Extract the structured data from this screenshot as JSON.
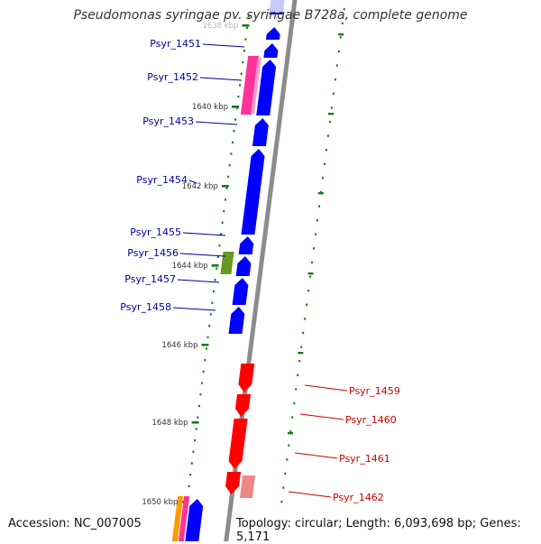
{
  "title": "Pseudomonas syringae pv. syringae B728a, complete genome",
  "accession": "Accession: NC_007005",
  "summary": "Topology: circular; Length: 6,093,698 bp; Genes: 5,171",
  "colors": {
    "backbone": "#8c8c8c",
    "forward_cds": "#0000ff",
    "reverse_cds": "#ff0000",
    "forward_label": "#000099",
    "reverse_label": "#cc0000",
    "tick": "#1a7a1a",
    "pink_feature": "#ff3399",
    "light_red_feature": "#ee8888",
    "green_feature": "#669922",
    "orange_feature": "#ff9900"
  },
  "ruler": [
    {
      "label": "1638 kbp",
      "kbp": 1638
    },
    {
      "label": "1640 kbp",
      "kbp": 1640
    },
    {
      "label": "1642 kbp",
      "kbp": 1642
    },
    {
      "label": "1644 kbp",
      "kbp": 1644
    },
    {
      "label": "1646 kbp",
      "kbp": 1646
    },
    {
      "label": "1648 kbp",
      "kbp": 1648
    },
    {
      "label": "1650 kbp",
      "kbp": 1650
    }
  ],
  "forward_genes": [
    {
      "name": "Psyr_1451"
    },
    {
      "name": "Psyr_1452"
    },
    {
      "name": "Psyr_1453"
    },
    {
      "name": "Psyr_1454"
    },
    {
      "name": "Psyr_1455"
    },
    {
      "name": "Psyr_1456"
    },
    {
      "name": "Psyr_1457"
    },
    {
      "name": "Psyr_1458"
    }
  ],
  "reverse_genes": [
    {
      "name": "Psyr_1459"
    },
    {
      "name": "Psyr_1460"
    },
    {
      "name": "Psyr_1461"
    },
    {
      "name": "Psyr_1462"
    }
  ]
}
